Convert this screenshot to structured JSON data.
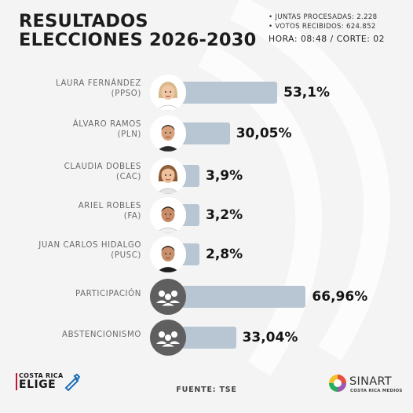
{
  "header": {
    "title_line1": "RESULTADOS",
    "title_line2": "ELECCIONES 2026-2030",
    "juntas": "• JUNTAS PROCESADAS: 2.228",
    "votos": "• VOTOS RECIBIDOS: 624.852",
    "hora": "HORA: 08:48 / CORTE: 02"
  },
  "chart_data": {
    "type": "bar",
    "orientation": "horizontal",
    "unit": "%",
    "categories": [
      {
        "name": "LAURA FERNÁNDEZ",
        "party": "(PPSO)",
        "value": 53.1,
        "label": "53,1%",
        "icon": "candidate-photo-laura-fernandez"
      },
      {
        "name": "ÁLVARO RAMOS",
        "party": "(PLN)",
        "value": 30.05,
        "label": "30,05%",
        "icon": "candidate-photo-alvaro-ramos"
      },
      {
        "name": "CLAUDIA DOBLES",
        "party": "(CAC)",
        "value": 3.9,
        "label": "3,9%",
        "icon": "candidate-photo-claudia-dobles"
      },
      {
        "name": "ARIEL ROBLES",
        "party": "(FA)",
        "value": 3.2,
        "label": "3,2%",
        "icon": "candidate-photo-ariel-robles"
      },
      {
        "name": "JUAN CARLOS HIDALGO",
        "party": "(PUSC)",
        "value": 2.8,
        "label": "2,8%",
        "icon": "candidate-photo-juan-carlos-hidalgo"
      },
      {
        "name": "PARTICIPACIÓN",
        "party": "",
        "value": 66.96,
        "label": "66,96%",
        "icon": "people-group-icon"
      },
      {
        "name": "ABSTENCIONISMO",
        "party": "",
        "value": 33.04,
        "label": "33,04%",
        "icon": "people-group-icon"
      }
    ],
    "bar_color": "#b8c6d3",
    "grid": false
  },
  "footer": {
    "source": "FUENTE: TSE",
    "brand_left_line1": "COSTA RICA",
    "brand_left_line2": "ELIGE",
    "brand_right_line1": "SINART",
    "brand_right_line2": "COSTA RICA MEDIOS"
  },
  "colors": {
    "background": "#f4f4f4",
    "bar": "#b8c6d3",
    "text_dark": "#151515",
    "label_gray": "#6b6b6b",
    "icon_gray": "#5f5f5f"
  }
}
